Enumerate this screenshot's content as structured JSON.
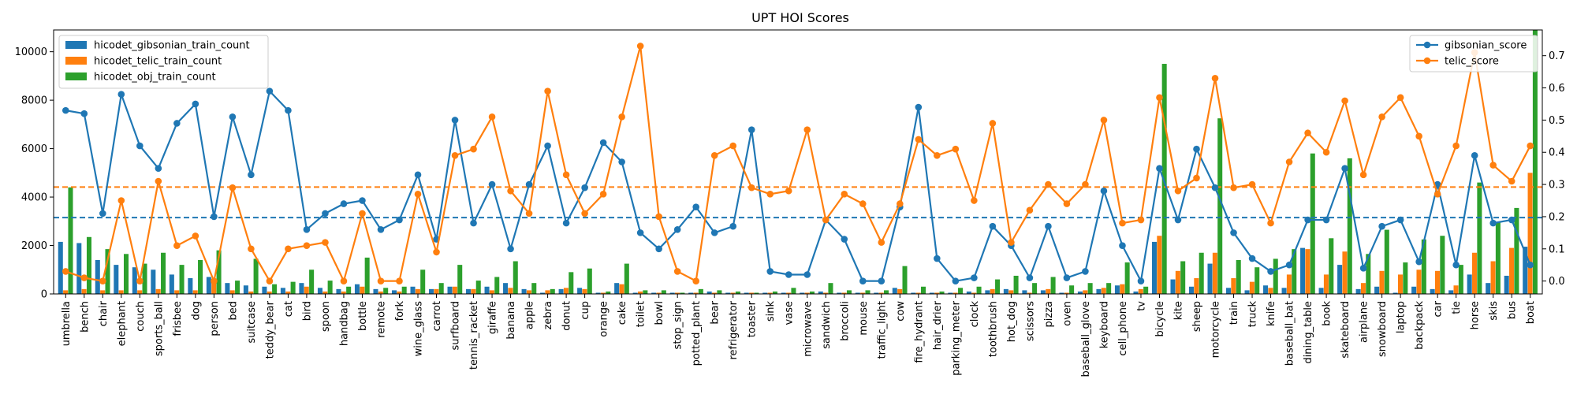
{
  "chart_data": {
    "type": "bar",
    "title": "UPT HOI Scores",
    "xlabel": "",
    "ylabel_left": "",
    "ylabel_right": "",
    "ylim_left": [
      0,
      10900
    ],
    "ylim_right": [
      -0.04,
      0.78
    ],
    "yticks_left": [
      0,
      2000,
      4000,
      6000,
      8000,
      10000
    ],
    "yticks_right": [
      0.0,
      0.1,
      0.2,
      0.3,
      0.4,
      0.5,
      0.6,
      0.7
    ],
    "grid": false,
    "legend_left_position": "top-left",
    "legend_right_position": "top-right",
    "categories": [
      "umbrella",
      "bench",
      "chair",
      "elephant",
      "couch",
      "sports_ball",
      "frisbee",
      "dog",
      "person",
      "bed",
      "suitcase",
      "teddy_bear",
      "cat",
      "bird",
      "spoon",
      "handbag",
      "bottle",
      "remote",
      "fork",
      "wine_glass",
      "carrot",
      "surfboard",
      "tennis_racket",
      "giraffe",
      "banana",
      "apple",
      "zebra",
      "donut",
      "cup",
      "orange",
      "cake",
      "toilet",
      "bowl",
      "stop_sign",
      "potted_plant",
      "bear",
      "refrigerator",
      "toaster",
      "sink",
      "vase",
      "microwave",
      "sandwich",
      "broccoli",
      "mouse",
      "traffic_light",
      "cow",
      "fire_hydrant",
      "hair_drier",
      "parking_meter",
      "clock",
      "toothbrush",
      "hot_dog",
      "scissors",
      "pizza",
      "oven",
      "baseball_glove",
      "keyboard",
      "cell_phone",
      "tv",
      "bicycle",
      "kite",
      "sheep",
      "motorcycle",
      "train",
      "truck",
      "knife",
      "baseball_bat",
      "dining_table",
      "book",
      "skateboard",
      "airplane",
      "snowboard",
      "laptop",
      "backpack",
      "car",
      "tie",
      "horse",
      "skis",
      "bus",
      "boat"
    ],
    "bar_series": [
      {
        "name": "hicodet_gibsonian_train_count",
        "color": "#1f77b4",
        "values": [
          2150,
          2100,
          1400,
          1200,
          1100,
          1000,
          800,
          650,
          700,
          450,
          350,
          300,
          250,
          450,
          250,
          200,
          400,
          200,
          150,
          300,
          200,
          300,
          200,
          300,
          450,
          200,
          50,
          200,
          250,
          50,
          450,
          50,
          50,
          50,
          50,
          100,
          50,
          50,
          50,
          50,
          50,
          100,
          50,
          50,
          50,
          250,
          50,
          50,
          50,
          100,
          150,
          200,
          150,
          150,
          50,
          100,
          200,
          350,
          100,
          2150,
          600,
          300,
          1250,
          250,
          150,
          350,
          250,
          1900,
          250,
          1200,
          200,
          300,
          50,
          300,
          200,
          150,
          800,
          450,
          750,
          1950
        ]
      },
      {
        "name": "hicodet_telic_train_count",
        "color": "#ff7f0e",
        "values": [
          150,
          200,
          150,
          150,
          150,
          200,
          150,
          150,
          550,
          150,
          100,
          100,
          100,
          300,
          100,
          100,
          300,
          100,
          100,
          200,
          200,
          300,
          200,
          150,
          250,
          150,
          150,
          250,
          200,
          50,
          400,
          100,
          50,
          50,
          50,
          50,
          50,
          50,
          50,
          50,
          50,
          50,
          50,
          50,
          50,
          200,
          50,
          50,
          50,
          50,
          200,
          150,
          50,
          200,
          50,
          150,
          250,
          400,
          200,
          2400,
          950,
          650,
          1700,
          650,
          500,
          250,
          800,
          1850,
          800,
          1750,
          450,
          950,
          800,
          1000,
          950,
          350,
          1700,
          1350,
          1900,
          5000
        ]
      },
      {
        "name": "hicodet_obj_train_count",
        "color": "#2ca02c",
        "values": [
          4400,
          2350,
          1850,
          1650,
          1250,
          1700,
          1200,
          1400,
          1800,
          550,
          1450,
          400,
          500,
          1000,
          550,
          300,
          1500,
          250,
          300,
          1000,
          450,
          1200,
          550,
          700,
          1350,
          450,
          200,
          900,
          1050,
          100,
          1250,
          150,
          150,
          50,
          200,
          150,
          100,
          50,
          100,
          250,
          100,
          450,
          150,
          150,
          150,
          1150,
          300,
          100,
          250,
          300,
          600,
          750,
          450,
          700,
          350,
          450,
          450,
          1300,
          300,
          9500,
          1350,
          1700,
          7250,
          1400,
          1100,
          1450,
          1850,
          5800,
          2300,
          5600,
          1650,
          2650,
          1300,
          2250,
          2400,
          1200,
          4600,
          2950,
          3550,
          10900
        ]
      }
    ],
    "line_series": [
      {
        "name": "gibsonian_score",
        "color": "#1f77b4",
        "values": [
          0.53,
          0.52,
          0.21,
          0.58,
          0.42,
          0.35,
          0.49,
          0.55,
          0.2,
          0.51,
          0.33,
          0.59,
          0.53,
          0.16,
          0.21,
          0.24,
          0.25,
          0.16,
          0.19,
          0.33,
          0.13,
          0.5,
          0.18,
          0.3,
          0.1,
          0.3,
          0.42,
          0.18,
          0.29,
          0.43,
          0.37,
          0.15,
          0.1,
          0.16,
          0.23,
          0.15,
          0.17,
          0.47,
          0.03,
          0.02,
          0.02,
          0.19,
          0.13,
          0.0,
          0.0,
          0.23,
          0.54,
          0.07,
          0.0,
          0.01,
          0.17,
          0.11,
          0.01,
          0.17,
          0.01,
          0.03,
          0.28,
          0.11,
          0.0,
          0.35,
          0.19,
          0.41,
          0.29,
          0.15,
          0.07,
          0.03,
          0.05,
          0.19,
          0.19,
          0.35,
          0.04,
          0.17,
          0.19,
          0.06,
          0.3,
          0.05,
          0.39,
          0.18,
          0.19,
          0.05
        ]
      },
      {
        "name": "telic_score",
        "color": "#ff7f0e",
        "values": [
          0.03,
          0.01,
          0.0,
          0.25,
          0.0,
          0.31,
          0.11,
          0.14,
          0.0,
          0.29,
          0.1,
          0.0,
          0.1,
          0.11,
          0.12,
          0.0,
          0.21,
          0.0,
          0.0,
          0.27,
          0.09,
          0.39,
          0.41,
          0.51,
          0.28,
          0.21,
          0.59,
          0.33,
          0.21,
          0.27,
          0.51,
          0.73,
          0.2,
          0.03,
          0.0,
          0.39,
          0.42,
          0.29,
          0.27,
          0.28,
          0.47,
          0.19,
          0.27,
          0.24,
          0.12,
          0.24,
          0.44,
          0.39,
          0.41,
          0.25,
          0.49,
          0.12,
          0.22,
          0.3,
          0.24,
          0.3,
          0.5,
          0.18,
          0.19,
          0.57,
          0.28,
          0.32,
          0.63,
          0.29,
          0.3,
          0.18,
          0.37,
          0.46,
          0.4,
          0.56,
          0.33,
          0.51,
          0.57,
          0.45,
          0.27,
          0.42,
          0.71,
          0.36,
          0.31,
          0.42
        ]
      }
    ],
    "reference_lines": [
      {
        "series": "gibsonian_score",
        "color": "#1f77b4",
        "value": 0.197,
        "style": "dashed"
      },
      {
        "series": "telic_score",
        "color": "#ff7f0e",
        "value": 0.292,
        "style": "dashed"
      }
    ]
  }
}
